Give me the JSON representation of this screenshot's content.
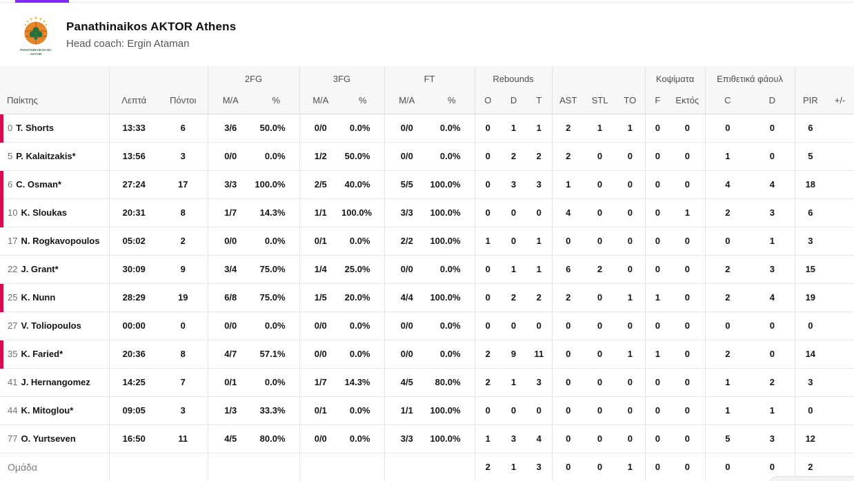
{
  "topbar": {
    "active_tab_color": "#7e2cf4"
  },
  "team_header": {
    "name": "Panathinaikos AKTOR Athens",
    "coach": "Head coach: Ergin Ataman",
    "logo_text_line1": "PANATHINAIKOS BC",
    "logo_text_line2": "AKTOR"
  },
  "colors": {
    "on_court_red": "#d80b4f",
    "active_tab_purple": "#7e2cf4",
    "header_bg": "#f7f7f7",
    "header_text": "#4d4d4d"
  },
  "table": {
    "header_groups": [
      "",
      "",
      "2FG",
      "3FG",
      "FT",
      "Rebounds",
      "",
      "Κοψίματα",
      "Επιθετικά φάουλ",
      ""
    ],
    "sub_headers": [
      "Παίκτης",
      "Λεπτά",
      "Πόντοι",
      "M/A",
      "%",
      "M/A",
      "%",
      "M/A",
      "%",
      "O",
      "D",
      "T",
      "AST",
      "STL",
      "TO",
      "F",
      "Εκτός",
      "C",
      "D",
      "PIR",
      "+/-"
    ],
    "players": [
      {
        "number": "0",
        "name": "T. Shorts",
        "on_court": true,
        "stats": [
          "13:33",
          "6",
          "3/6",
          "50.0%",
          "0/0",
          "0.0%",
          "0/0",
          "0.0%",
          "0",
          "1",
          "1",
          "2",
          "1",
          "1",
          "0",
          "0",
          "0",
          "0",
          "6",
          ""
        ]
      },
      {
        "number": "5",
        "name": "P. Kalaitzakis*",
        "on_court": false,
        "stats": [
          "13:56",
          "3",
          "0/0",
          "0.0%",
          "1/2",
          "50.0%",
          "0/0",
          "0.0%",
          "0",
          "2",
          "2",
          "2",
          "0",
          "0",
          "0",
          "0",
          "1",
          "0",
          "5",
          ""
        ]
      },
      {
        "number": "6",
        "name": "C. Osman*",
        "on_court": true,
        "stats": [
          "27:24",
          "17",
          "3/3",
          "100.0%",
          "2/5",
          "40.0%",
          "5/5",
          "100.0%",
          "0",
          "3",
          "3",
          "1",
          "0",
          "0",
          "0",
          "0",
          "4",
          "4",
          "18",
          ""
        ]
      },
      {
        "number": "10",
        "name": "K. Sloukas",
        "on_court": true,
        "stats": [
          "20:31",
          "8",
          "1/7",
          "14.3%",
          "1/1",
          "100.0%",
          "3/3",
          "100.0%",
          "0",
          "0",
          "0",
          "4",
          "0",
          "0",
          "0",
          "1",
          "2",
          "3",
          "6",
          ""
        ]
      },
      {
        "number": "17",
        "name": "N. Rogkavopoulos",
        "on_court": false,
        "stats": [
          "05:02",
          "2",
          "0/0",
          "0.0%",
          "0/1",
          "0.0%",
          "2/2",
          "100.0%",
          "1",
          "0",
          "1",
          "0",
          "0",
          "0",
          "0",
          "0",
          "0",
          "1",
          "3",
          ""
        ]
      },
      {
        "number": "22",
        "name": "J. Grant*",
        "on_court": false,
        "stats": [
          "30:09",
          "9",
          "3/4",
          "75.0%",
          "1/4",
          "25.0%",
          "0/0",
          "0.0%",
          "0",
          "1",
          "1",
          "6",
          "2",
          "0",
          "0",
          "0",
          "2",
          "3",
          "15",
          ""
        ]
      },
      {
        "number": "25",
        "name": "K. Nunn",
        "on_court": true,
        "stats": [
          "28:29",
          "19",
          "6/8",
          "75.0%",
          "1/5",
          "20.0%",
          "4/4",
          "100.0%",
          "0",
          "2",
          "2",
          "2",
          "0",
          "1",
          "1",
          "0",
          "2",
          "4",
          "19",
          ""
        ]
      },
      {
        "number": "27",
        "name": "V. Toliopoulos",
        "on_court": false,
        "stats": [
          "00:00",
          "0",
          "0/0",
          "0.0%",
          "0/0",
          "0.0%",
          "0/0",
          "0.0%",
          "0",
          "0",
          "0",
          "0",
          "0",
          "0",
          "0",
          "0",
          "0",
          "0",
          "0",
          ""
        ]
      },
      {
        "number": "35",
        "name": "K. Faried*",
        "on_court": true,
        "stats": [
          "20:36",
          "8",
          "4/7",
          "57.1%",
          "0/0",
          "0.0%",
          "0/0",
          "0.0%",
          "2",
          "9",
          "11",
          "0",
          "0",
          "1",
          "1",
          "0",
          "2",
          "0",
          "14",
          ""
        ]
      },
      {
        "number": "41",
        "name": "J. Hernangomez",
        "on_court": false,
        "stats": [
          "14:25",
          "7",
          "0/1",
          "0.0%",
          "1/7",
          "14.3%",
          "4/5",
          "80.0%",
          "2",
          "1",
          "3",
          "0",
          "0",
          "0",
          "0",
          "0",
          "1",
          "2",
          "3",
          ""
        ]
      },
      {
        "number": "44",
        "name": "K. Mitoglou*",
        "on_court": false,
        "stats": [
          "09:05",
          "3",
          "1/3",
          "33.3%",
          "0/1",
          "0.0%",
          "1/1",
          "100.0%",
          "0",
          "0",
          "0",
          "0",
          "0",
          "0",
          "0",
          "0",
          "1",
          "1",
          "0",
          ""
        ]
      },
      {
        "number": "77",
        "name": "O. Yurtseven",
        "on_court": false,
        "stats": [
          "16:50",
          "11",
          "4/5",
          "80.0%",
          "0/0",
          "0.0%",
          "3/3",
          "100.0%",
          "1",
          "3",
          "4",
          "0",
          "0",
          "0",
          "0",
          "0",
          "5",
          "3",
          "12",
          ""
        ]
      }
    ],
    "team_row": {
      "label": "Ομάδα",
      "stats": [
        "",
        "",
        "",
        "",
        "",
        "",
        "",
        "",
        "2",
        "1",
        "3",
        "0",
        "0",
        "1",
        "0",
        "0",
        "0",
        "0",
        "2",
        ""
      ]
    }
  }
}
